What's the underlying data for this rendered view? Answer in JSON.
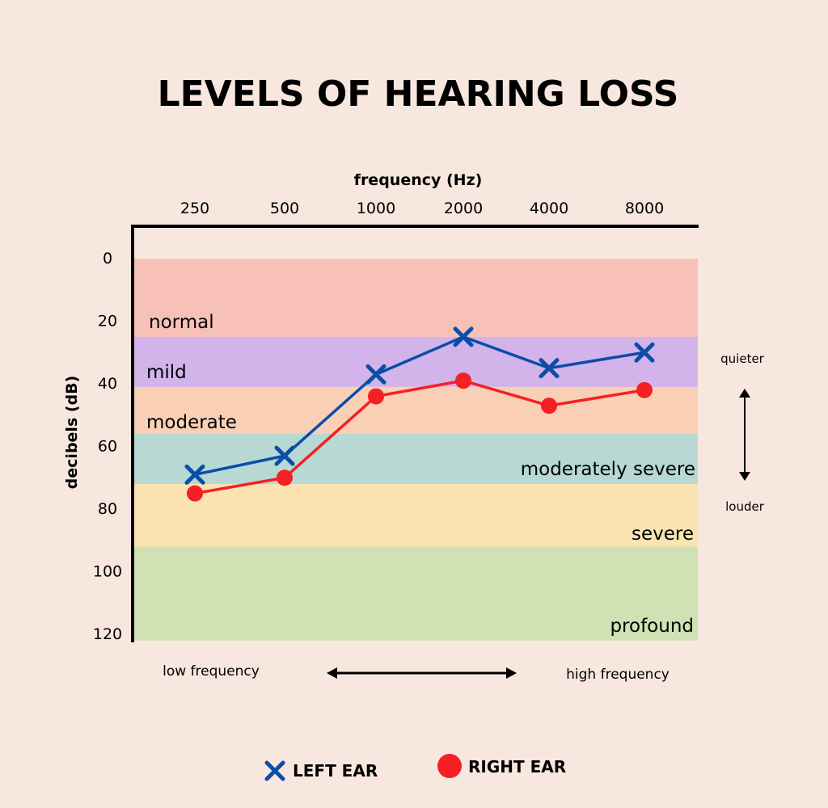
{
  "chart_data": {
    "type": "line",
    "title": "LEVELS OF HEARING LOSS",
    "xlabel": "frequency (Hz)",
    "ylabel": "decibels (dB)",
    "categories": [
      "250",
      "500",
      "1000",
      "2000",
      "4000",
      "8000"
    ],
    "y_ticks": [
      "0",
      "20",
      "40",
      "60",
      "80",
      "100",
      "120"
    ],
    "ylim": [
      0,
      120
    ],
    "y_reversed": true,
    "grid": false,
    "bands": [
      {
        "label": "normal",
        "from": 0,
        "to": 25,
        "color": "#f8c1b8"
      },
      {
        "label": "mild",
        "from": 25,
        "to": 41,
        "color": "#d2b3ea"
      },
      {
        "label": "moderate",
        "from": 41,
        "to": 56,
        "color": "#f9d0b6"
      },
      {
        "label": "moderately severe",
        "from": 56,
        "to": 72,
        "color": "#b8d8d3"
      },
      {
        "label": "severe",
        "from": 72,
        "to": 92,
        "color": "#fae3b0"
      },
      {
        "label": "profound",
        "from": 92,
        "to": 122,
        "color": "#d0e2b3"
      }
    ],
    "series": [
      {
        "name": "LEFT EAR",
        "marker": "x",
        "color": "#0b4da8",
        "values": [
          69,
          63,
          37,
          25,
          35,
          30
        ]
      },
      {
        "name": "RIGHT EAR",
        "marker": "circle",
        "color": "#f42024",
        "values": [
          75,
          70,
          44,
          39,
          47,
          42
        ]
      }
    ],
    "legend_position": "bottom"
  },
  "notes": {
    "quieter": "quieter",
    "louder": "louder",
    "low_frequency": "low frequency",
    "high_frequency": "high frequency"
  }
}
